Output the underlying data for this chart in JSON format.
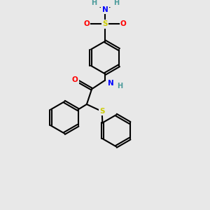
{
  "background_color": "#e8e8e8",
  "atom_colors": {
    "C": "#000000",
    "H": "#4a9a9a",
    "N": "#0000ff",
    "O": "#ff0000",
    "S": "#cccc00"
  },
  "bond_color": "#000000",
  "bond_width": 1.5,
  "dbo": 0.06,
  "figsize": [
    3.0,
    3.0
  ],
  "dpi": 100
}
